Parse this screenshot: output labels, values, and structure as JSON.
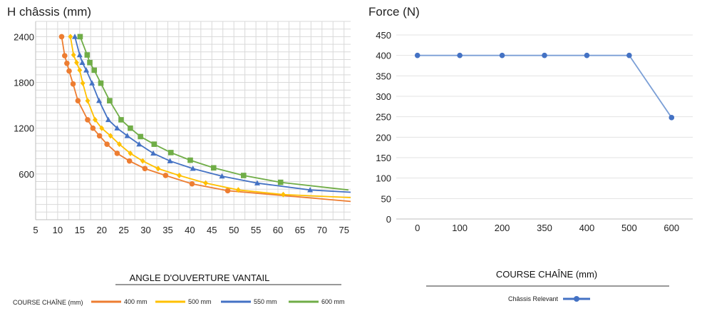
{
  "chart_data": [
    {
      "type": "line",
      "title": "H châssis (mm)",
      "xlabel": "ANGLE D'OUVERTURE VANTAIL",
      "ylabel": "",
      "x_ticks": [
        5,
        10,
        15,
        20,
        25,
        30,
        35,
        40,
        45,
        50,
        55,
        60,
        65,
        70,
        75
      ],
      "xlim": [
        5,
        76.5
      ],
      "y_ticks": [
        600,
        1200,
        1800,
        2400
      ],
      "ylim": [
        0,
        2600
      ],
      "grid": true,
      "legend": {
        "title": "COURSE CHAÎNE (mm)",
        "placement": "bottom"
      },
      "series": [
        {
          "name": "400 mm",
          "color": "#ed7d31",
          "marker": "circle",
          "x": [
            10.9,
            11.6,
            12.1,
            12.6,
            13.5,
            14.6,
            16.8,
            18.0,
            19.5,
            21.2,
            23.5,
            26.3,
            29.8,
            34.5,
            40.5,
            48.6,
            76.5
          ],
          "y": [
            2400,
            2150,
            2050,
            1950,
            1780,
            1560,
            1310,
            1200,
            1100,
            990,
            870,
            770,
            670,
            580,
            470,
            380,
            240
          ]
        },
        {
          "name": "500 mm",
          "color": "#ffc000",
          "marker": "diamond",
          "x": [
            12.9,
            13.6,
            14.3,
            15.0,
            15.7,
            16.8,
            18.5,
            20.0,
            22.0,
            24.0,
            26.5,
            29.3,
            32.8,
            37.6,
            43.6,
            51.0,
            61.2,
            76.5
          ],
          "y": [
            2400,
            2160,
            2060,
            1960,
            1790,
            1560,
            1310,
            1200,
            1100,
            990,
            870,
            770,
            670,
            580,
            480,
            390,
            330,
            290
          ]
        },
        {
          "name": "550 mm",
          "color": "#4472c4",
          "marker": "triangle",
          "x": [
            13.9,
            15.0,
            15.6,
            16.5,
            17.8,
            19.4,
            21.5,
            23.5,
            25.8,
            28.5,
            31.7,
            35.5,
            40.7,
            47.3,
            55.3,
            67.3,
            76.5
          ],
          "y": [
            2400,
            2160,
            2060,
            1960,
            1790,
            1560,
            1310,
            1200,
            1100,
            990,
            870,
            770,
            670,
            570,
            480,
            390,
            360
          ]
        },
        {
          "name": "600 mm",
          "color": "#70ad47",
          "marker": "square",
          "x": [
            15.1,
            16.7,
            17.3,
            18.3,
            19.8,
            21.8,
            24.4,
            26.5,
            28.8,
            31.9,
            35.7,
            40.1,
            45.4,
            52.2,
            60.6,
            76.0
          ],
          "y": [
            2400,
            2160,
            2060,
            1960,
            1790,
            1560,
            1310,
            1200,
            1090,
            990,
            880,
            780,
            680,
            580,
            490,
            390
          ]
        }
      ]
    },
    {
      "type": "line",
      "title": "Force (N)",
      "xlabel": "COURSE CHAÎNE (mm)",
      "ylabel": "",
      "categories": [
        "0",
        "100",
        "200",
        "350",
        "400",
        "500",
        "600"
      ],
      "y_ticks": [
        0,
        50,
        100,
        150,
        200,
        250,
        300,
        350,
        400,
        450
      ],
      "ylim": [
        0,
        450
      ],
      "grid": true,
      "legend": {
        "placement": "bottom"
      },
      "series": [
        {
          "name": "Châssis Relevant",
          "color": "#4472c4",
          "marker": "circle",
          "values": [
            400,
            400,
            400,
            400,
            400,
            400,
            248
          ]
        }
      ]
    }
  ]
}
